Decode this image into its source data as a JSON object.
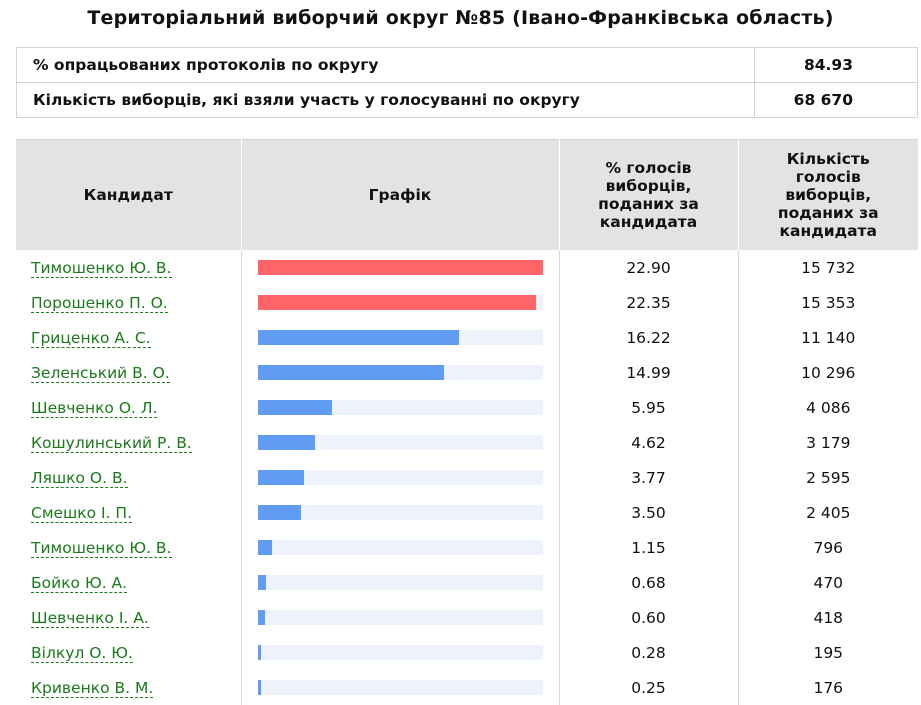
{
  "title": "Територіальний виборчий округ №85 (Івано-Франківська область)",
  "summary": [
    {
      "label": "% опрацьованих протоколів по округу",
      "value": "84.93"
    },
    {
      "label": "Кількість виборців, які взяли участь у голосуванні по округу",
      "value": "68 670"
    }
  ],
  "headers": {
    "candidate": "Кандидат",
    "chart": "Графік",
    "percent": "% голосів виборців, поданих за кандидата",
    "count": "Кількість голосів виборців, поданих за кандидата"
  },
  "colors": {
    "leader": "#ff6468",
    "other": "#5f9cf2",
    "track": "#eef2fb"
  },
  "max_percent": 22.9,
  "candidates": [
    {
      "name": "Тимошенко Ю. В.",
      "percent": "22.90",
      "count": "15 732",
      "leader": true
    },
    {
      "name": "Порошенко П. О.",
      "percent": "22.35",
      "count": "15 353",
      "leader": true
    },
    {
      "name": "Гриценко А. С.",
      "percent": "16.22",
      "count": "11 140",
      "leader": false
    },
    {
      "name": "Зеленський В. О.",
      "percent": "14.99",
      "count": "10 296",
      "leader": false
    },
    {
      "name": "Шевченко О. Л.",
      "percent": "5.95",
      "count": "4 086",
      "leader": false
    },
    {
      "name": "Кошулинський Р. В.",
      "percent": "4.62",
      "count": "3 179",
      "leader": false
    },
    {
      "name": "Ляшко О. В.",
      "percent": "3.77",
      "count": "2 595",
      "leader": false
    },
    {
      "name": "Смешко І. П.",
      "percent": "3.50",
      "count": "2 405",
      "leader": false
    },
    {
      "name": "Тимошенко Ю. В.",
      "percent": "1.15",
      "count": "796",
      "leader": false
    },
    {
      "name": "Бойко Ю. А.",
      "percent": "0.68",
      "count": "470",
      "leader": false
    },
    {
      "name": "Шевченко І. А.",
      "percent": "0.60",
      "count": "418",
      "leader": false
    },
    {
      "name": "Вілкул О. Ю.",
      "percent": "0.28",
      "count": "195",
      "leader": false
    },
    {
      "name": "Кривенко В. М.",
      "percent": "0.25",
      "count": "176",
      "leader": false
    }
  ]
}
